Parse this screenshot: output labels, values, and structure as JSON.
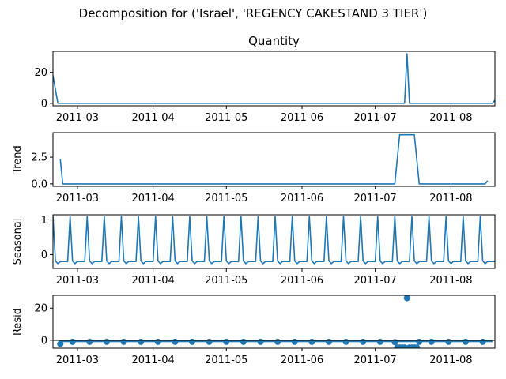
{
  "figure_title": "Decomposition for ('Israel', 'REGENCY CAKESTAND 3 TIER')",
  "x_date_ticks": [
    "2011-03",
    "2011-04",
    "2011-05",
    "2011-06",
    "2011-07",
    "2011-08"
  ],
  "series_color": "#1f77b4",
  "chart_data": [
    {
      "type": "line",
      "title": "Quantity",
      "ylabel": "",
      "xlim": [
        "2011-02-19",
        "2011-08-19"
      ],
      "ylim": [
        -1.6,
        33.6
      ],
      "yticks": [
        0,
        20
      ],
      "ytick_labels": [
        "0",
        "20"
      ],
      "x": [
        "2011-02-19",
        "2011-02-21",
        "2011-07-12",
        "2011-07-13",
        "2011-07-14",
        "2011-07-15",
        "2011-08-18",
        "2011-08-19"
      ],
      "values": [
        18,
        0,
        0,
        0,
        32,
        0,
        0,
        2
      ]
    },
    {
      "type": "line",
      "title": "",
      "ylabel": "Trend",
      "xlim": [
        "2011-02-19",
        "2011-08-19"
      ],
      "ylim": [
        -0.23,
        4.8
      ],
      "yticks": [
        0,
        2.5
      ],
      "ytick_labels": [
        "0.0",
        "2.5"
      ],
      "x": [
        "2011-02-22",
        "2011-02-23",
        "2011-07-09",
        "2011-07-11",
        "2011-07-17",
        "2011-07-19",
        "2011-08-15",
        "2011-08-16"
      ],
      "values": [
        2.3,
        0,
        0,
        4.6,
        4.6,
        0,
        0,
        0.3
      ]
    },
    {
      "type": "line",
      "title": "",
      "ylabel": "Seasonal",
      "xlim": [
        "2011-02-19",
        "2011-08-19"
      ],
      "ylim": [
        -0.4,
        1.15
      ],
      "yticks": [
        0,
        1
      ],
      "ytick_labels": [
        "0",
        "1"
      ],
      "period_days": 7,
      "pattern": [
        1.1,
        -0.18,
        -0.26,
        -0.2,
        -0.2,
        -0.2,
        -0.2
      ],
      "pattern_start": "2011-02-19"
    },
    {
      "type": "scatter",
      "title": "",
      "ylabel": "Resid",
      "xlim": [
        "2011-02-19",
        "2011-08-19"
      ],
      "ylim": [
        -5,
        28
      ],
      "yticks": [
        0,
        20
      ],
      "ytick_labels": [
        "0",
        "20"
      ],
      "baseline": 0,
      "x": [
        "2011-02-22",
        "2011-02-27",
        "2011-03-06",
        "2011-03-13",
        "2011-03-20",
        "2011-03-27",
        "2011-04-03",
        "2011-04-10",
        "2011-04-17",
        "2011-04-24",
        "2011-05-01",
        "2011-05-08",
        "2011-05-15",
        "2011-05-22",
        "2011-05-29",
        "2011-06-05",
        "2011-06-12",
        "2011-06-19",
        "2011-06-26",
        "2011-07-03",
        "2011-07-09",
        "2011-07-10",
        "2011-07-11",
        "2011-07-12",
        "2011-07-13",
        "2011-07-14",
        "2011-07-15",
        "2011-07-16",
        "2011-07-17",
        "2011-07-18",
        "2011-07-19",
        "2011-07-24",
        "2011-07-31",
        "2011-08-07",
        "2011-08-14"
      ],
      "values": [
        -2.3,
        -1,
        -1,
        -1,
        -1,
        -1,
        -1,
        -1,
        -1,
        -1,
        -1,
        -1,
        -1,
        -1,
        -1,
        -1,
        -1,
        -1,
        -1,
        -1,
        -1.2,
        -4.6,
        -4.6,
        -4.6,
        -4.6,
        26.3,
        -4.6,
        -4.6,
        -4.6,
        -4.6,
        -1,
        -1,
        -1,
        -1,
        -1
      ]
    }
  ]
}
